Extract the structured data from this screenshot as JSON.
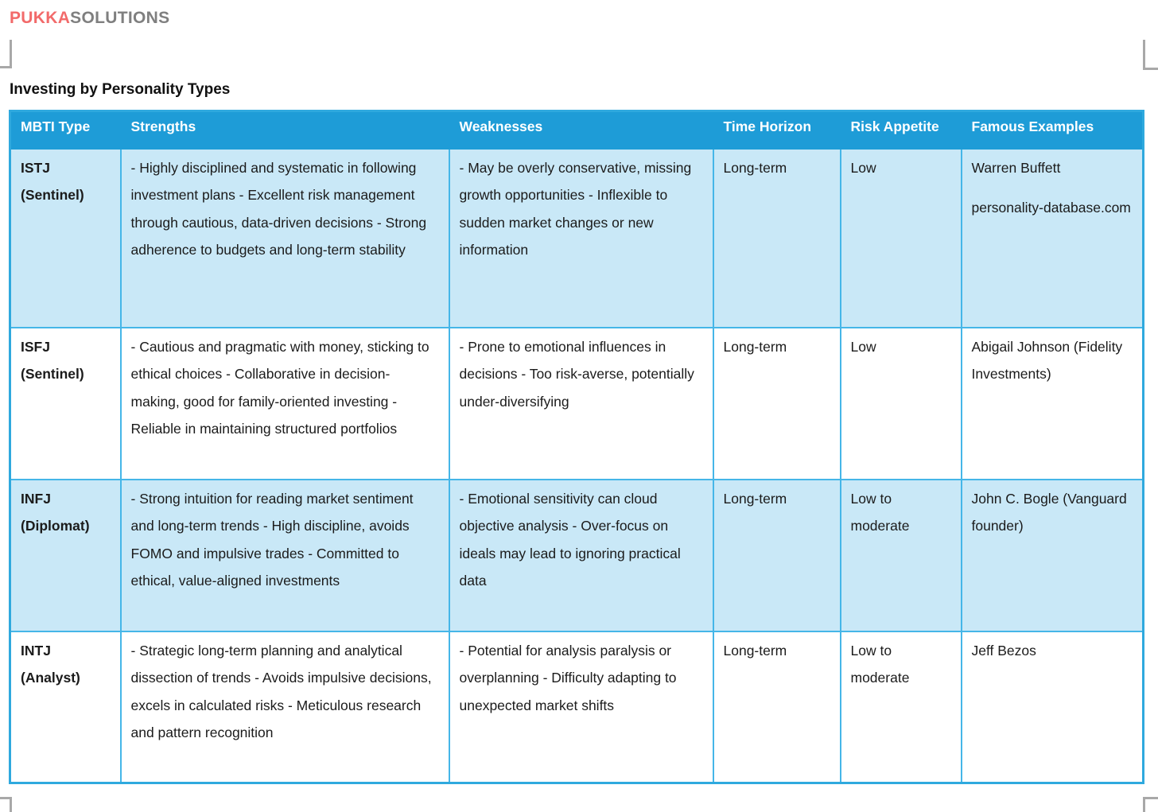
{
  "logo": {
    "part1": "PUKKA",
    "part2": "SOLUTIONS"
  },
  "title": "Investing by Personality Types",
  "colors": {
    "header_bg": "#1E9CD7",
    "row_alt_bg": "#C9E8F7",
    "row_bg": "#FFFFFF",
    "border": "#45B6E8",
    "logo_red": "#F26A6A",
    "logo_gray": "#7F7F7F",
    "crop_mark_gray": "#A8A8A8"
  },
  "table": {
    "columns": [
      "MBTI Type",
      "Strengths",
      "Weaknesses",
      "Time Horizon",
      "Risk Appetite",
      "Famous Examples"
    ],
    "rows": [
      {
        "mbti_type": "ISTJ",
        "mbti_group": "(Sentinel)",
        "strengths": "- Highly disciplined and systematic in following investment plans - Excellent risk management through cautious, data-driven decisions - Strong adherence to budgets and long-term stability",
        "weaknesses": "- May be overly conservative, missing growth opportunities - Inflexible to sudden market changes or new information",
        "time_horizon": "Long-term",
        "risk_appetite": "Low",
        "famous_examples": [
          "Warren Buffett",
          "personality-database.com"
        ]
      },
      {
        "mbti_type": "ISFJ",
        "mbti_group": "(Sentinel)",
        "strengths": "- Cautious and pragmatic with money, sticking to ethical choices - Collaborative in decision-making, good for family-oriented investing - Reliable in maintaining structured portfolios",
        "weaknesses": "- Prone to emotional influences in decisions - Too risk-averse, potentially under-diversifying",
        "time_horizon": "Long-term",
        "risk_appetite": "Low",
        "famous_examples": [
          "Abigail Johnson (Fidelity Investments)"
        ]
      },
      {
        "mbti_type": "INFJ",
        "mbti_group": "(Diplomat)",
        "strengths": "- Strong intuition for reading market sentiment and long-term trends - High discipline, avoids FOMO and impulsive trades - Committed to ethical, value-aligned investments",
        "weaknesses": "- Emotional sensitivity can cloud objective analysis - Over-focus on ideals may lead to ignoring practical data",
        "time_horizon": "Long-term",
        "risk_appetite": "Low to moderate",
        "famous_examples": [
          "John C. Bogle (Vanguard founder)"
        ]
      },
      {
        "mbti_type": "INTJ",
        "mbti_group": "(Analyst)",
        "strengths": "- Strategic long-term planning and analytical dissection of trends - Avoids impulsive decisions, excels in calculated risks - Meticulous research and pattern recognition",
        "weaknesses": "- Potential for analysis paralysis or overplanning - Difficulty adapting to unexpected market shifts",
        "time_horizon": "Long-term",
        "risk_appetite": "Low to moderate",
        "famous_examples": [
          "Jeff Bezos"
        ]
      }
    ]
  }
}
